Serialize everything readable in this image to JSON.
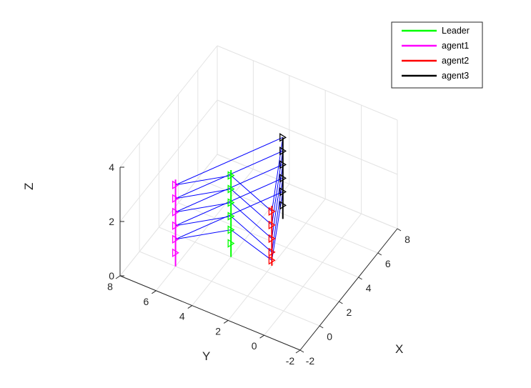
{
  "chart_data": {
    "type": "line",
    "subtype": "3d-trajectory",
    "title": "",
    "xlabel": "X",
    "ylabel": "Y",
    "zlabel": "Z",
    "xlim": [
      -2,
      8
    ],
    "ylim": [
      -2,
      8
    ],
    "zlim": [
      0,
      4
    ],
    "xticks": [
      "-2",
      "0",
      "2",
      "4",
      "6",
      "8"
    ],
    "yticks": [
      "-2",
      "0",
      "2",
      "4",
      "6",
      "8"
    ],
    "zticks": [
      "0",
      "2",
      "4"
    ],
    "grid": true,
    "legend_position": "top-right",
    "series": [
      {
        "name": "Leader",
        "color": "#00ff00",
        "points": [
          [
            2.0,
            4.0,
            3.2
          ],
          [
            2.0,
            4.0,
            0.0
          ]
        ],
        "markers": [
          [
            2.0,
            4.0,
            3.0
          ],
          [
            2.0,
            4.0,
            2.5
          ],
          [
            2.0,
            4.0,
            2.0
          ],
          [
            2.0,
            4.0,
            1.5
          ],
          [
            2.0,
            4.0,
            1.0
          ],
          [
            2.0,
            4.0,
            0.5
          ]
        ]
      },
      {
        "name": "agent1",
        "color": "#ff00ff",
        "points": [
          [
            0.0,
            6.0,
            3.2
          ],
          [
            0.0,
            6.0,
            0.0
          ]
        ],
        "markers": [
          [
            0.0,
            6.0,
            3.0
          ],
          [
            0.0,
            6.0,
            2.5
          ],
          [
            0.0,
            6.0,
            2.0
          ],
          [
            0.0,
            6.0,
            1.5
          ],
          [
            0.0,
            6.0,
            1.0
          ],
          [
            0.0,
            6.0,
            0.5
          ]
        ]
      },
      {
        "name": "agent2",
        "color": "#ff0000",
        "points": [
          [
            2.5,
            2.0,
            2.2
          ],
          [
            2.5,
            2.0,
            0.0
          ]
        ],
        "markers": [
          [
            2.5,
            2.0,
            2.0
          ],
          [
            2.5,
            2.0,
            1.5
          ],
          [
            2.5,
            2.0,
            1.0
          ],
          [
            2.5,
            2.0,
            0.5
          ],
          [
            2.5,
            2.0,
            0.2
          ]
        ]
      },
      {
        "name": "agent3",
        "color": "#000000",
        "points": [
          [
            4.0,
            2.2,
            4.0
          ],
          [
            4.0,
            2.2,
            1.0
          ]
        ],
        "markers": [
          [
            4.0,
            2.2,
            4.0
          ],
          [
            4.0,
            2.2,
            3.5
          ],
          [
            4.0,
            2.2,
            3.0
          ],
          [
            4.0,
            2.2,
            2.5
          ],
          [
            4.0,
            2.2,
            2.0
          ],
          [
            4.0,
            2.2,
            1.5
          ]
        ]
      }
    ],
    "connection_color": "#0000ff"
  }
}
